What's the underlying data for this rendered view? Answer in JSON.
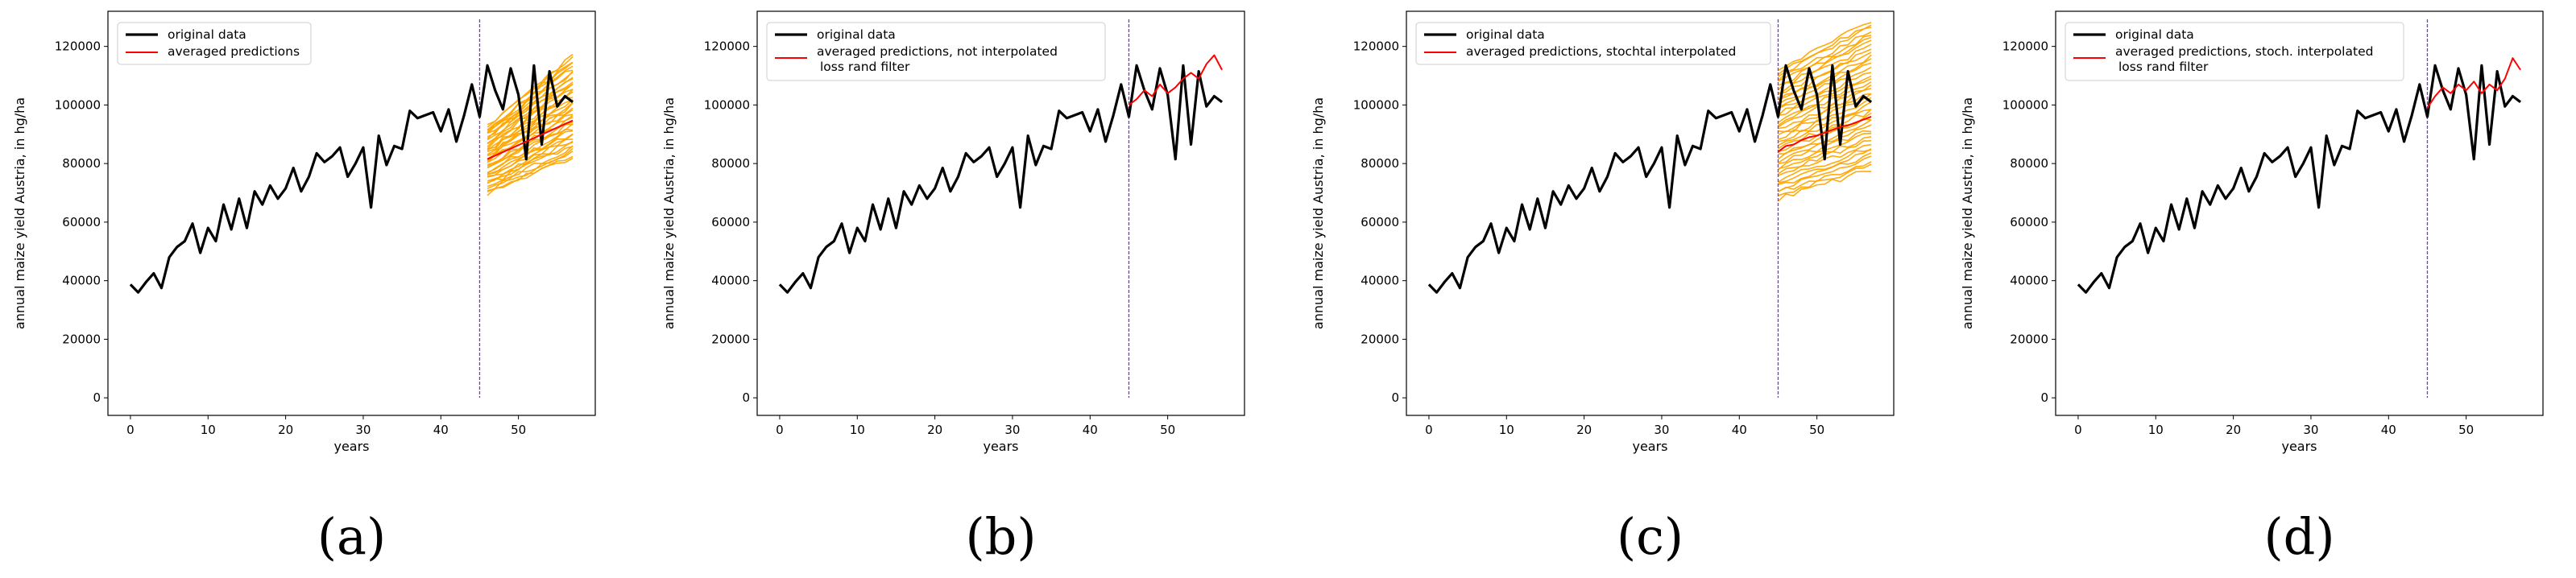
{
  "chart_data": [
    {
      "type": "line",
      "caption": "(a)",
      "xlabel": "years",
      "ylabel": "annual maize yield Austria, in hg/ha",
      "xlim": [
        -2.9,
        59.9
      ],
      "ylim": [
        -6000,
        132000
      ],
      "xticks": [
        "0",
        "10",
        "20",
        "30",
        "40",
        "50"
      ],
      "yticks": [
        "0",
        "20000",
        "40000",
        "60000",
        "80000",
        "100000",
        "120000"
      ],
      "legend": [
        "original data",
        "averaged predictions"
      ],
      "legend_position": "upper left",
      "split_year": 45,
      "prediction_band": {
        "x_start": 46,
        "x_end": 57,
        "lower_start": 70000,
        "lower_end": 82000,
        "upper_start": 93000,
        "upper_end": 117000,
        "color": "#ffa500"
      },
      "series": [
        {
          "name": "original data",
          "role": "original",
          "color": "#000000"
        },
        {
          "name": "averaged predictions",
          "role": "prediction",
          "color": "#ff0000",
          "x": [
            46,
            47,
            48,
            49,
            50,
            51,
            52,
            53,
            54,
            55,
            56,
            57
          ],
          "y": [
            81500,
            82700,
            83900,
            85100,
            86300,
            87500,
            88700,
            89900,
            91100,
            92300,
            93500,
            94700
          ]
        }
      ]
    },
    {
      "type": "line",
      "caption": "(b)",
      "xlabel": "years",
      "ylabel": "annual maize yield Austria, in hg/ha",
      "xlim": [
        -2.9,
        59.9
      ],
      "ylim": [
        -6000,
        132000
      ],
      "xticks": [
        "0",
        "10",
        "20",
        "30",
        "40",
        "50"
      ],
      "yticks": [
        "0",
        "20000",
        "40000",
        "60000",
        "80000",
        "100000",
        "120000"
      ],
      "legend": [
        "original data",
        "averaged predictions, not interpolated",
        "loss rand filter"
      ],
      "legend_position": "upper left",
      "split_year": 45,
      "series": [
        {
          "name": "original data",
          "role": "original",
          "color": "#000000"
        },
        {
          "name": "averaged predictions, not interpolated loss rand filter",
          "role": "prediction",
          "color": "#ff0000",
          "x": [
            45,
            46,
            47,
            48,
            49,
            50,
            51,
            52,
            53,
            54,
            55,
            56,
            57
          ],
          "y": [
            100000,
            102000,
            105000,
            103000,
            107000,
            104000,
            106000,
            109000,
            111000,
            109000,
            114000,
            117000,
            112000
          ]
        }
      ]
    },
    {
      "type": "line",
      "caption": "(c)",
      "xlabel": "years",
      "ylabel": "annual maize yield Austria, in hg/ha",
      "xlim": [
        -2.9,
        59.9
      ],
      "ylim": [
        -6000,
        132000
      ],
      "xticks": [
        "0",
        "10",
        "20",
        "30",
        "40",
        "50"
      ],
      "yticks": [
        "0",
        "20000",
        "40000",
        "60000",
        "80000",
        "100000",
        "120000"
      ],
      "legend": [
        "original data",
        "averaged predictions, stochtal interpolated"
      ],
      "legend_position": "upper left",
      "split_year": 45,
      "prediction_band": {
        "x_start": 45,
        "x_end": 57,
        "lower_start": 68000,
        "lower_end": 78000,
        "upper_start": 112000,
        "upper_end": 129000,
        "color": "#ffa500"
      },
      "series": [
        {
          "name": "original data",
          "role": "original",
          "color": "#000000"
        },
        {
          "name": "averaged predictions, stochtal interpolated",
          "role": "prediction",
          "color": "#ff0000",
          "x": [
            45,
            46,
            47,
            48,
            49,
            50,
            51,
            52,
            53,
            54,
            55,
            56,
            57
          ],
          "y": [
            84000,
            86000,
            86500,
            88000,
            89000,
            89500,
            90500,
            91500,
            92500,
            93000,
            94000,
            95000,
            96000
          ]
        }
      ]
    },
    {
      "type": "line",
      "caption": "(d)",
      "xlabel": "years",
      "ylabel": "annual maize yield Austria, in hg/ha",
      "xlim": [
        -2.9,
        59.9
      ],
      "ylim": [
        -6000,
        132000
      ],
      "xticks": [
        "0",
        "10",
        "20",
        "30",
        "40",
        "50"
      ],
      "yticks": [
        "0",
        "20000",
        "40000",
        "60000",
        "80000",
        "100000",
        "120000"
      ],
      "legend": [
        "original data",
        "averaged predictions, stoch. interpolated",
        "loss rand filter"
      ],
      "legend_position": "upper left",
      "split_year": 45,
      "series": [
        {
          "name": "original data",
          "role": "original",
          "color": "#000000"
        },
        {
          "name": "averaged predictions, stoch. interpolated loss rand filter",
          "role": "prediction",
          "color": "#ff0000",
          "x": [
            45,
            46,
            47,
            48,
            49,
            50,
            51,
            52,
            53,
            54,
            55,
            56,
            57
          ],
          "y": [
            99000,
            103000,
            106000,
            104000,
            107000,
            105000,
            108000,
            104000,
            107000,
            105000,
            109000,
            116000,
            112000
          ]
        }
      ]
    }
  ],
  "shared": {
    "original_data": {
      "x": [
        0,
        1,
        2,
        3,
        4,
        5,
        6,
        7,
        8,
        9,
        10,
        11,
        12,
        13,
        14,
        15,
        16,
        17,
        18,
        19,
        20,
        21,
        22,
        23,
        24,
        25,
        26,
        27,
        28,
        29,
        30,
        31,
        32,
        33,
        34,
        35,
        36,
        37,
        38,
        39,
        40,
        41,
        42,
        43,
        44,
        45,
        46,
        47,
        48,
        49,
        50,
        51,
        52,
        53,
        54,
        55,
        56,
        57
      ],
      "y": [
        38700,
        36000,
        39500,
        42500,
        37500,
        48000,
        51500,
        53500,
        59500,
        49500,
        58000,
        53500,
        66000,
        57500,
        68000,
        58000,
        70500,
        66000,
        72500,
        68000,
        71500,
        78500,
        70500,
        75500,
        83500,
        80500,
        82500,
        85500,
        75500,
        80000,
        85500,
        65000,
        89500,
        79500,
        86000,
        85000,
        98000,
        95500,
        96500,
        97500,
        91000,
        98500,
        87500,
        96500,
        107000,
        96000,
        113500,
        105000,
        98500,
        112500,
        103500,
        81500,
        113500,
        86500,
        111500,
        99500,
        103000,
        101000
      ]
    }
  }
}
